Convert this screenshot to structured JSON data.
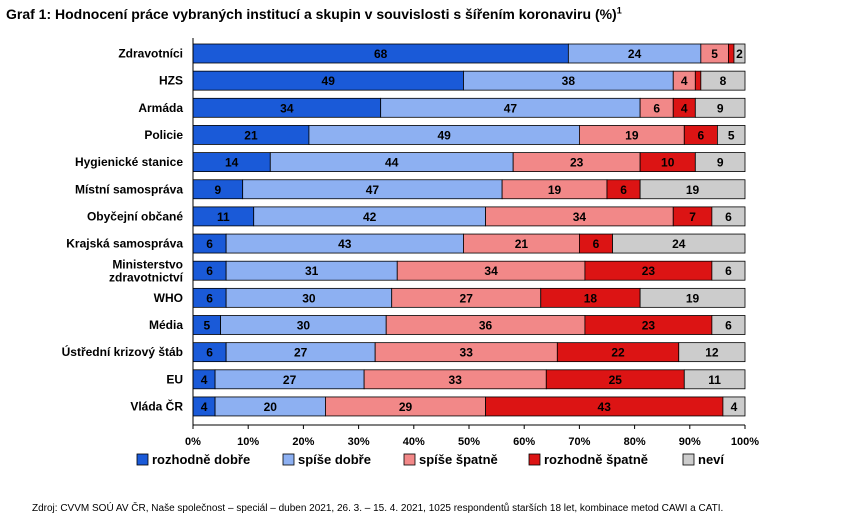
{
  "chart_data": {
    "type": "bar",
    "orientation": "horizontal",
    "stacked": true,
    "title": "Graf 1: Hodnocení práce vybraných institucí a skupin v souvislosti s šířením koronaviru (%)",
    "title_footnote": "1",
    "categories": [
      "Zdravotníci",
      "HZS",
      "Armáda",
      "Policie",
      "Hygienické stanice",
      "Místní samospráva",
      "Obyčejní občané",
      "Krajská samospráva",
      "Ministerstvo zdravotnictví",
      "WHO",
      "Média",
      "Ústřední krizový štáb",
      "EU",
      "Vláda ČR"
    ],
    "category_lines": [
      [
        "Zdravotníci"
      ],
      [
        "HZS"
      ],
      [
        "Armáda"
      ],
      [
        "Policie"
      ],
      [
        "Hygienické stanice"
      ],
      [
        "Místní samospráva"
      ],
      [
        "Obyčejní občané"
      ],
      [
        "Krajská samospráva"
      ],
      [
        "Ministerstvo",
        "zdravotnictví"
      ],
      [
        "WHO"
      ],
      [
        "Média"
      ],
      [
        "Ústřední krizový štáb"
      ],
      [
        "EU"
      ],
      [
        "Vláda ČR"
      ]
    ],
    "series": [
      {
        "name": "rozhodně dobře",
        "color": "#1a5ad8",
        "values": [
          68,
          49,
          34,
          21,
          14,
          9,
          11,
          6,
          6,
          6,
          5,
          6,
          4,
          4
        ]
      },
      {
        "name": "spíše dobře",
        "color": "#8db0f2",
        "values": [
          24,
          38,
          47,
          49,
          44,
          47,
          42,
          43,
          31,
          30,
          30,
          27,
          27,
          20
        ]
      },
      {
        "name": "spíše špatně",
        "color": "#f28888",
        "values": [
          5,
          4,
          6,
          19,
          23,
          19,
          34,
          21,
          34,
          27,
          36,
          33,
          33,
          29
        ]
      },
      {
        "name": "rozhodně špatně",
        "color": "#dc1414",
        "values": [
          1,
          1,
          4,
          6,
          10,
          6,
          7,
          6,
          23,
          18,
          23,
          22,
          25,
          43
        ]
      },
      {
        "name": "neví",
        "color": "#cccccc",
        "values": [
          2,
          8,
          9,
          5,
          9,
          19,
          6,
          24,
          6,
          19,
          6,
          12,
          11,
          4
        ]
      }
    ],
    "data_labels": [
      [
        "68",
        "24",
        "5",
        "",
        "2"
      ],
      [
        "49",
        "38",
        "4",
        "",
        "8"
      ],
      [
        "34",
        "47",
        "6",
        "4",
        "9"
      ],
      [
        "21",
        "49",
        "19",
        "6",
        "5"
      ],
      [
        "14",
        "44",
        "23",
        "10",
        "9"
      ],
      [
        "9",
        "47",
        "19",
        "6",
        "19"
      ],
      [
        "11",
        "42",
        "34",
        "7",
        "6"
      ],
      [
        "6",
        "43",
        "21",
        "6",
        "24"
      ],
      [
        "6",
        "31",
        "34",
        "23",
        "6"
      ],
      [
        "6",
        "30",
        "27",
        "18",
        "19"
      ],
      [
        "5",
        "30",
        "36",
        "23",
        "6"
      ],
      [
        "6",
        "27",
        "33",
        "22",
        "12"
      ],
      [
        "4",
        "27",
        "33",
        "25",
        "11"
      ],
      [
        "4",
        "20",
        "29",
        "43",
        "4"
      ]
    ],
    "x_ticks": [
      "0%",
      "10%",
      "20%",
      "30%",
      "40%",
      "50%",
      "60%",
      "70%",
      "80%",
      "90%",
      "100%"
    ],
    "xlim": [
      0,
      100
    ],
    "xlabel": "",
    "ylabel": "",
    "grid": false,
    "legend_position": "bottom"
  },
  "source": "Zdroj: CVVM SOÚ AV ČR, Naše společnost – speciál – duben 2021, 26. 3. – 15. 4. 2021, 1025 respondentů starších 18 let, kombinace metod CAWI a CATI."
}
